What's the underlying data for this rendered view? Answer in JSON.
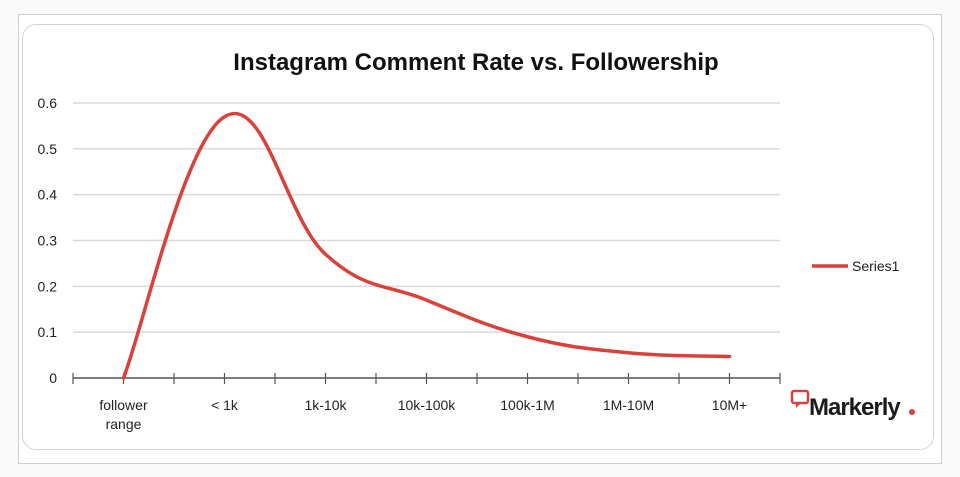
{
  "chart_data": {
    "type": "line",
    "title": "Instagram Comment Rate vs. Followership",
    "xlabel": "",
    "ylabel": "",
    "categories": [
      "follower range",
      "< 1k",
      "1k-10k",
      "10k-100k",
      "100k-1M",
      "1M-10M",
      "10M+"
    ],
    "series": [
      {
        "name": "Series1",
        "values": [
          0,
          0.57,
          0.27,
          0.17,
          0.09,
          0.055,
          0.047
        ],
        "color": "#d9413a"
      }
    ],
    "ylim": [
      0,
      0.6
    ],
    "yticks": [
      "0",
      "0.1",
      "0.2",
      "0.3",
      "0.4",
      "0.5",
      "0.6"
    ],
    "grid": true,
    "smooth": true,
    "legend_position": "right"
  },
  "watermark": {
    "text": "Markerly.",
    "icon": "speech-bubble-quote-icon",
    "accent": "#d9413a"
  }
}
